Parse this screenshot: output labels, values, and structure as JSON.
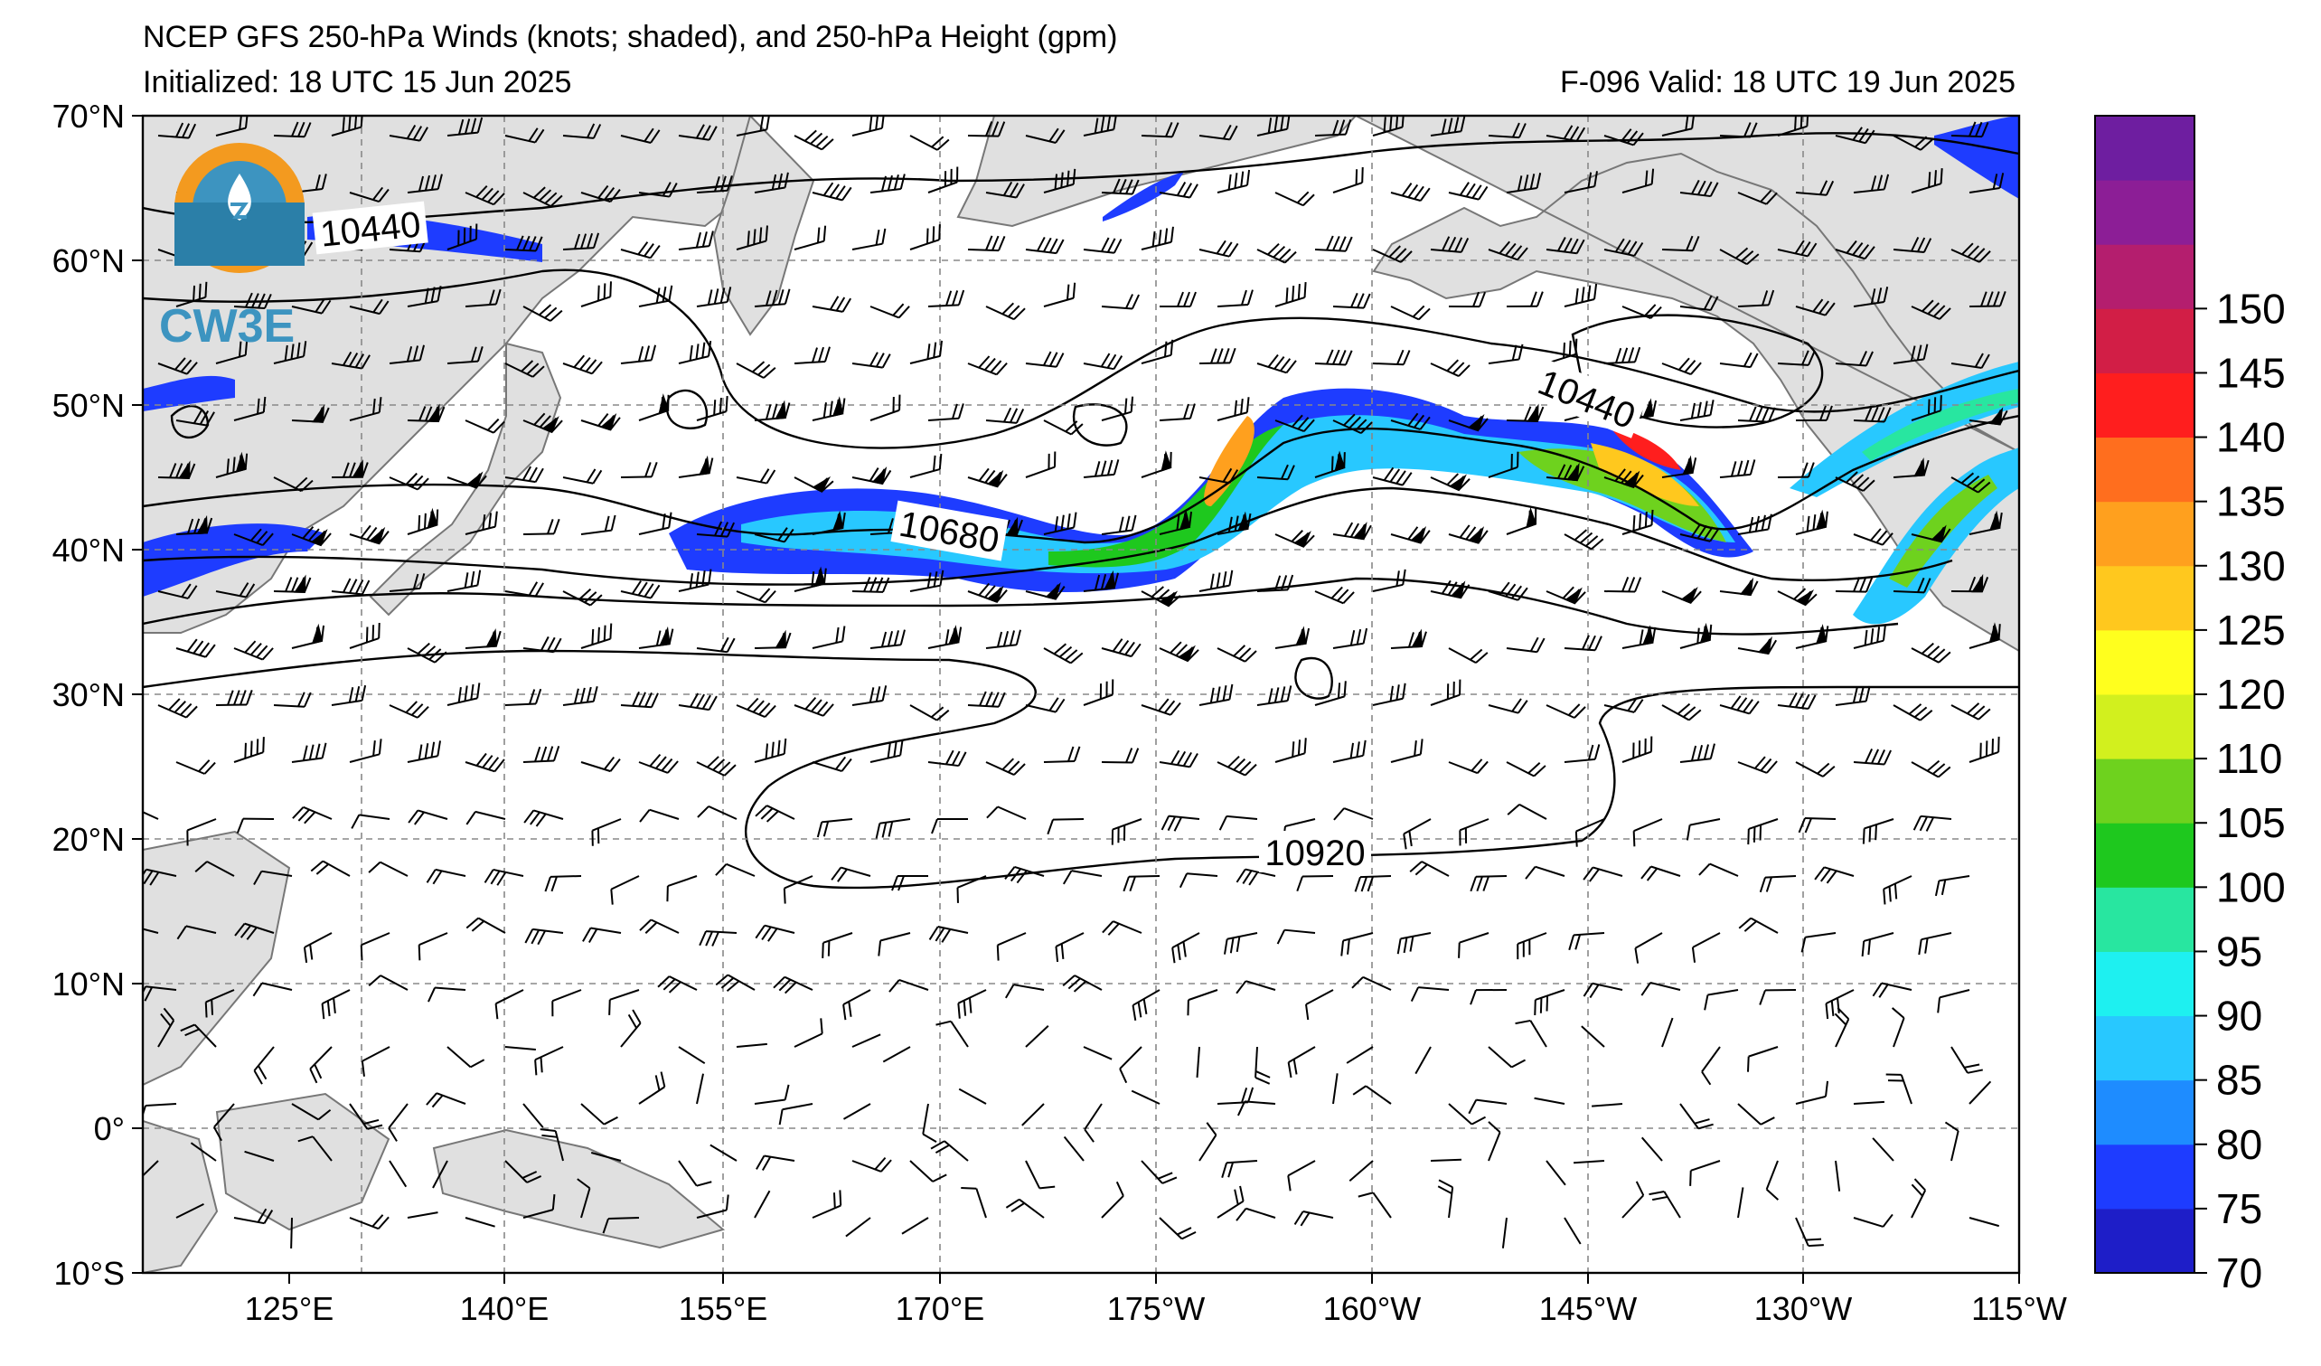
{
  "title": {
    "main": "NCEP GFS 250-hPa Winds (knots; shaded), and 250-hPa Height (gpm)",
    "initialized": "Initialized: 18 UTC 15 Jun 2025",
    "valid": "F-096  Valid: 18 UTC 19 Jun 2025"
  },
  "logo": {
    "text": "CW3E",
    "icon": "cw3e-logo-icon"
  },
  "map": {
    "lon_ticks": [
      "125°E",
      "140°E",
      "155°E",
      "170°E",
      "175°W",
      "160°W",
      "145°W",
      "130°W",
      "115°W"
    ],
    "lat_ticks": [
      "70°N",
      "60°N",
      "50°N",
      "40°N",
      "30°N",
      "20°N",
      "10°N",
      "0°",
      "10°S"
    ],
    "grid": true,
    "contour_labels": [
      "10440",
      "10440",
      "10680",
      "10920"
    ]
  },
  "colorbar": {
    "levels": [
      "70",
      "75",
      "80",
      "85",
      "90",
      "95",
      "100",
      "105",
      "110",
      "120",
      "125",
      "130",
      "135",
      "140",
      "145",
      "150"
    ],
    "colors": [
      "#1e1ec8",
      "#1e3cff",
      "#1e8cff",
      "#28c8ff",
      "#1ef0f0",
      "#28e6a0",
      "#1ec81e",
      "#6ed21e",
      "#d2f01e",
      "#ffff1e",
      "#ffc81e",
      "#ffa01e",
      "#ff6e1e",
      "#ff1e1e",
      "#d21e46",
      "#b41e6e",
      "#8c1e96",
      "#6e1ea0"
    ]
  }
}
